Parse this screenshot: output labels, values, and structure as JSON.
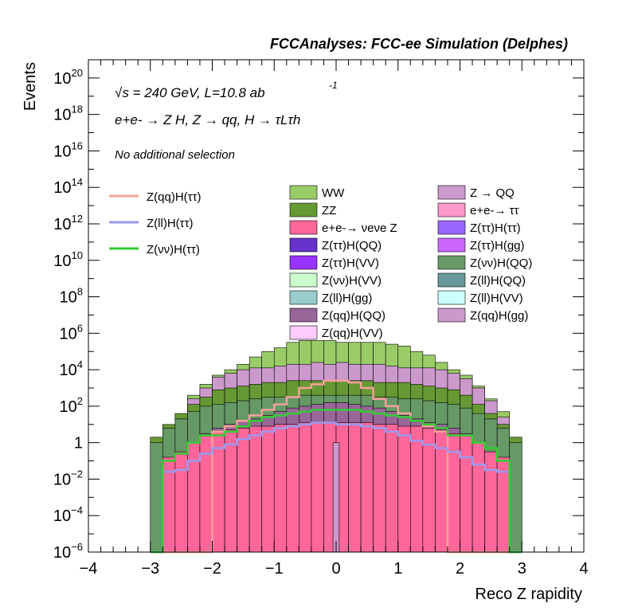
{
  "header": "FCCAnalyses: FCC-ee Simulation (Delphes)",
  "annotations": {
    "energy": "√s = 240 GeV, L=10.8 ab",
    "energy_exp": "-1",
    "process": "e+e- → Z H, Z → qq, H → τLτh",
    "selection": "No additional selection"
  },
  "chart_data": {
    "type": "histogram-stack-log",
    "xlabel": "Reco Z rapidity",
    "ylabel": "Events",
    "xlim": [
      -4,
      4
    ],
    "ylim_log10": [
      -6,
      21
    ],
    "x_ticks": [
      "−4",
      "−3",
      "−2",
      "−1",
      "0",
      "1",
      "2",
      "3",
      "4"
    ],
    "y_ticks": [
      {
        "exp": -6,
        "label": "10",
        "sup": "−6"
      },
      {
        "exp": -4,
        "label": "10",
        "sup": "−4"
      },
      {
        "exp": -2,
        "label": "10",
        "sup": "−2"
      },
      {
        "exp": 0,
        "label": "1",
        "sup": ""
      },
      {
        "exp": 2,
        "label": "10",
        "sup": "2"
      },
      {
        "exp": 4,
        "label": "10",
        "sup": "4"
      },
      {
        "exp": 6,
        "label": "10",
        "sup": "6"
      },
      {
        "exp": 8,
        "label": "10",
        "sup": "8"
      },
      {
        "exp": 10,
        "label": "10",
        "sup": "10"
      },
      {
        "exp": 12,
        "label": "10",
        "sup": "12"
      },
      {
        "exp": 14,
        "label": "10",
        "sup": "14"
      },
      {
        "exp": 16,
        "label": "10",
        "sup": "16"
      },
      {
        "exp": 18,
        "label": "10",
        "sup": "18"
      },
      {
        "exp": 20,
        "label": "10",
        "sup": "20"
      }
    ],
    "bin_edges": [
      -3.0,
      -2.8,
      -2.6,
      -2.4,
      -2.2,
      -2.0,
      -1.8,
      -1.6,
      -1.4,
      -1.2,
      -1.0,
      -0.8,
      -0.6,
      -0.4,
      -0.2,
      0.0,
      0.2,
      0.4,
      0.6,
      0.8,
      1.0,
      1.2,
      1.4,
      1.6,
      1.8,
      2.0,
      2.2,
      2.4,
      2.6,
      2.8,
      3.0
    ],
    "stack_log10_tops": {
      "WW": [
        -6,
        -6,
        1.4,
        2.6,
        3.2,
        3.7,
        4.0,
        4.3,
        4.7,
        5.0,
        5.2,
        5.5,
        5.6,
        5.6,
        5.6,
        5.5,
        5.5,
        5.5,
        5.5,
        5.4,
        5.3,
        5.0,
        4.8,
        4.4,
        4.0,
        3.7,
        3.1,
        2.4,
        1.7,
        -6
      ],
      "Z→QQ": [
        -6,
        -6,
        1.0,
        2.4,
        3.0,
        3.6,
        3.8,
        4.0,
        4.1,
        4.1,
        4.2,
        4.3,
        4.3,
        4.4,
        4.3,
        4.4,
        4.3,
        4.3,
        4.3,
        4.2,
        4.1,
        4.1,
        4.1,
        4.0,
        3.8,
        3.5,
        3.0,
        2.3,
        1.4,
        -6
      ],
      "ZZ": [
        0.3,
        1.0,
        1.6,
        2.1,
        2.5,
        2.9,
        3.0,
        3.1,
        3.2,
        3.3,
        3.3,
        3.4,
        3.4,
        3.4,
        3.4,
        3.4,
        3.4,
        3.4,
        3.3,
        3.3,
        3.3,
        3.2,
        3.1,
        3.0,
        2.9,
        2.6,
        2.1,
        1.6,
        1.0,
        0.3
      ],
      "Z(νν)H(QQ)": [
        0.0,
        0.8,
        1.3,
        1.7,
        2.0,
        2.1,
        2.2,
        2.3,
        2.4,
        2.5,
        2.5,
        2.5,
        2.6,
        2.6,
        2.6,
        2.6,
        2.6,
        2.6,
        2.5,
        2.5,
        2.4,
        2.4,
        2.3,
        2.2,
        2.1,
        1.9,
        1.6,
        1.3,
        0.8,
        0.0
      ],
      "Z(qq)H(QQ)": [
        -6,
        -6,
        -6,
        -6,
        0.5,
        0.8,
        1.0,
        1.2,
        1.3,
        1.5,
        1.7,
        1.9,
        2.0,
        2.1,
        2.2,
        2.2,
        2.1,
        2.0,
        1.9,
        1.7,
        1.5,
        1.3,
        1.1,
        1.0,
        0.8,
        0.5,
        -6,
        -6,
        -6,
        -6
      ],
      "e+e-→νeνeZ": [
        -6,
        -0.8,
        -0.5,
        0.0,
        0.4,
        0.6,
        0.7,
        0.8,
        0.9,
        0.9,
        1.0,
        1.0,
        1.1,
        1.1,
        1.1,
        1.1,
        1.1,
        1.1,
        1.0,
        1.0,
        0.9,
        0.9,
        0.8,
        0.7,
        0.5,
        0.4,
        0.0,
        -0.5,
        -0.8,
        -6
      ]
    },
    "overlay_log10": {
      "Z(qq)H(ττ)": [
        -6,
        -6,
        -6,
        -6,
        -6,
        0.6,
        0.9,
        1.2,
        1.5,
        1.8,
        2.1,
        2.5,
        3.0,
        3.2,
        3.4,
        3.4,
        3.3,
        3.0,
        2.4,
        2.0,
        1.6,
        1.2,
        0.9,
        0.6,
        -6,
        -6,
        -6,
        -6,
        -6,
        -6
      ],
      "Z(ll)H(ττ)": [
        -6,
        -1.6,
        -1.5,
        -1.0,
        -0.6,
        -0.3,
        -0.1,
        0.2,
        0.4,
        0.6,
        0.8,
        0.9,
        1.0,
        1.1,
        1.1,
        1.0,
        1.0,
        0.9,
        0.8,
        0.6,
        0.4,
        0.1,
        -0.1,
        -0.3,
        -0.5,
        -0.8,
        -1.2,
        -1.5,
        -1.6,
        -6
      ],
      "Z(νν)H(ττ)": [
        -6,
        -1.0,
        -0.6,
        0.0,
        0.4,
        0.4,
        0.6,
        0.9,
        1.2,
        1.4,
        1.5,
        1.6,
        1.7,
        1.8,
        1.8,
        1.8,
        1.8,
        1.7,
        1.6,
        1.5,
        1.4,
        1.2,
        1.0,
        0.8,
        0.4,
        0.4,
        0.0,
        -0.3,
        -1.0,
        -6
      ]
    },
    "legend_lines": [
      {
        "name": "Z(qq)H(ττ)",
        "color": "#f4a199"
      },
      {
        "name": "Z(ll)H(ττ)",
        "color": "#9999ee"
      },
      {
        "name": "Z(νν)H(ττ)",
        "color": "#33cc33"
      }
    ],
    "legend_boxes_col1": [
      {
        "name": "WW",
        "color": "#99cc66"
      },
      {
        "name": "ZZ",
        "color": "#669933"
      },
      {
        "name": "e+e-→ νeνe Z",
        "color": "#ff6699"
      },
      {
        "name": "Z(ττ)H(QQ)",
        "color": "#6633cc"
      },
      {
        "name": "Z(ττ)H(VV)",
        "color": "#9933ff"
      },
      {
        "name": "Z(νν)H(VV)",
        "color": "#ccffcc"
      },
      {
        "name": "Z(ll)H(gg)",
        "color": "#99cccc"
      },
      {
        "name": "Z(qq)H(QQ)",
        "color": "#996699"
      },
      {
        "name": "Z(qq)H(VV)",
        "color": "#ffccff"
      }
    ],
    "legend_boxes_col2": [
      {
        "name": "Z → QQ",
        "color": "#cc99cc"
      },
      {
        "name": "e+e-→ ττ",
        "color": "#ff99cc"
      },
      {
        "name": "Z(ττ)H(ττ)",
        "color": "#9966ff"
      },
      {
        "name": "Z(ττ)H(gg)",
        "color": "#cc66ff"
      },
      {
        "name": "Z(νν)H(QQ)",
        "color": "#669966"
      },
      {
        "name": "Z(ll)H(QQ)",
        "color": "#669999"
      },
      {
        "name": "Z(ll)H(VV)",
        "color": "#ccffff"
      },
      {
        "name": "Z(qq)H(gg)",
        "color": "#cc99cc"
      }
    ]
  }
}
